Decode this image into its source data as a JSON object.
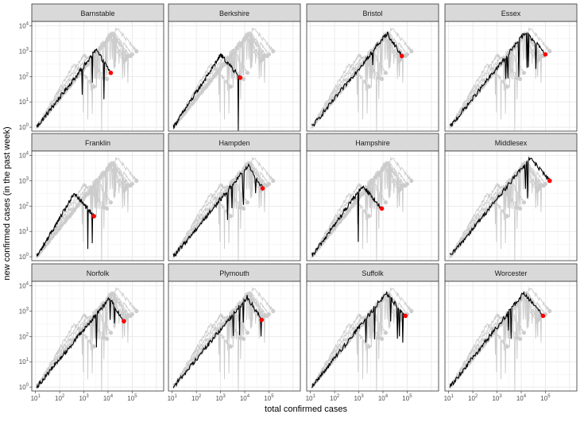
{
  "chart_data": {
    "type": "line",
    "scale": "log-log",
    "xlabel": "total confirmed cases",
    "ylabel": "new confirmed cases (in the past week)",
    "xlim": [
      7,
      2000000
    ],
    "ylim": [
      0.7,
      15000
    ],
    "x_ticks": [
      "10^1",
      "10^2",
      "10^3",
      "10^4",
      "10^5"
    ],
    "y_ticks": [
      "10^0",
      "10^1",
      "10^2",
      "10^3",
      "10^4"
    ],
    "grid": true,
    "highlight_color": "#000000",
    "background_color": "#cccccc",
    "endpoint_color": "#ff0000",
    "panels": [
      {
        "name": "Barnstable",
        "last_x": 13000,
        "last_y": 140,
        "pattern": 0
      },
      {
        "name": "Berkshire",
        "last_x": 6500,
        "last_y": 90,
        "pattern": 1
      },
      {
        "name": "Bristol",
        "last_x": 60000,
        "last_y": 650,
        "pattern": 2
      },
      {
        "name": "Essex",
        "last_x": 100000,
        "last_y": 750,
        "pattern": 3
      },
      {
        "name": "Franklin",
        "last_x": 2600,
        "last_y": 40,
        "pattern": 1
      },
      {
        "name": "Hampden",
        "last_x": 55000,
        "last_y": 500,
        "pattern": 2
      },
      {
        "name": "Hampshire",
        "last_x": 9000,
        "last_y": 80,
        "pattern": 1
      },
      {
        "name": "Middlesex",
        "last_x": 150000,
        "last_y": 1000,
        "pattern": 3
      },
      {
        "name": "Norfolk",
        "last_x": 45000,
        "last_y": 400,
        "pattern": 2
      },
      {
        "name": "Plymouth",
        "last_x": 50000,
        "last_y": 450,
        "pattern": 2
      },
      {
        "name": "Suffolk",
        "last_x": 85000,
        "last_y": 650,
        "pattern": 3
      },
      {
        "name": "Worcester",
        "last_x": 80000,
        "last_y": 650,
        "pattern": 3
      }
    ]
  }
}
